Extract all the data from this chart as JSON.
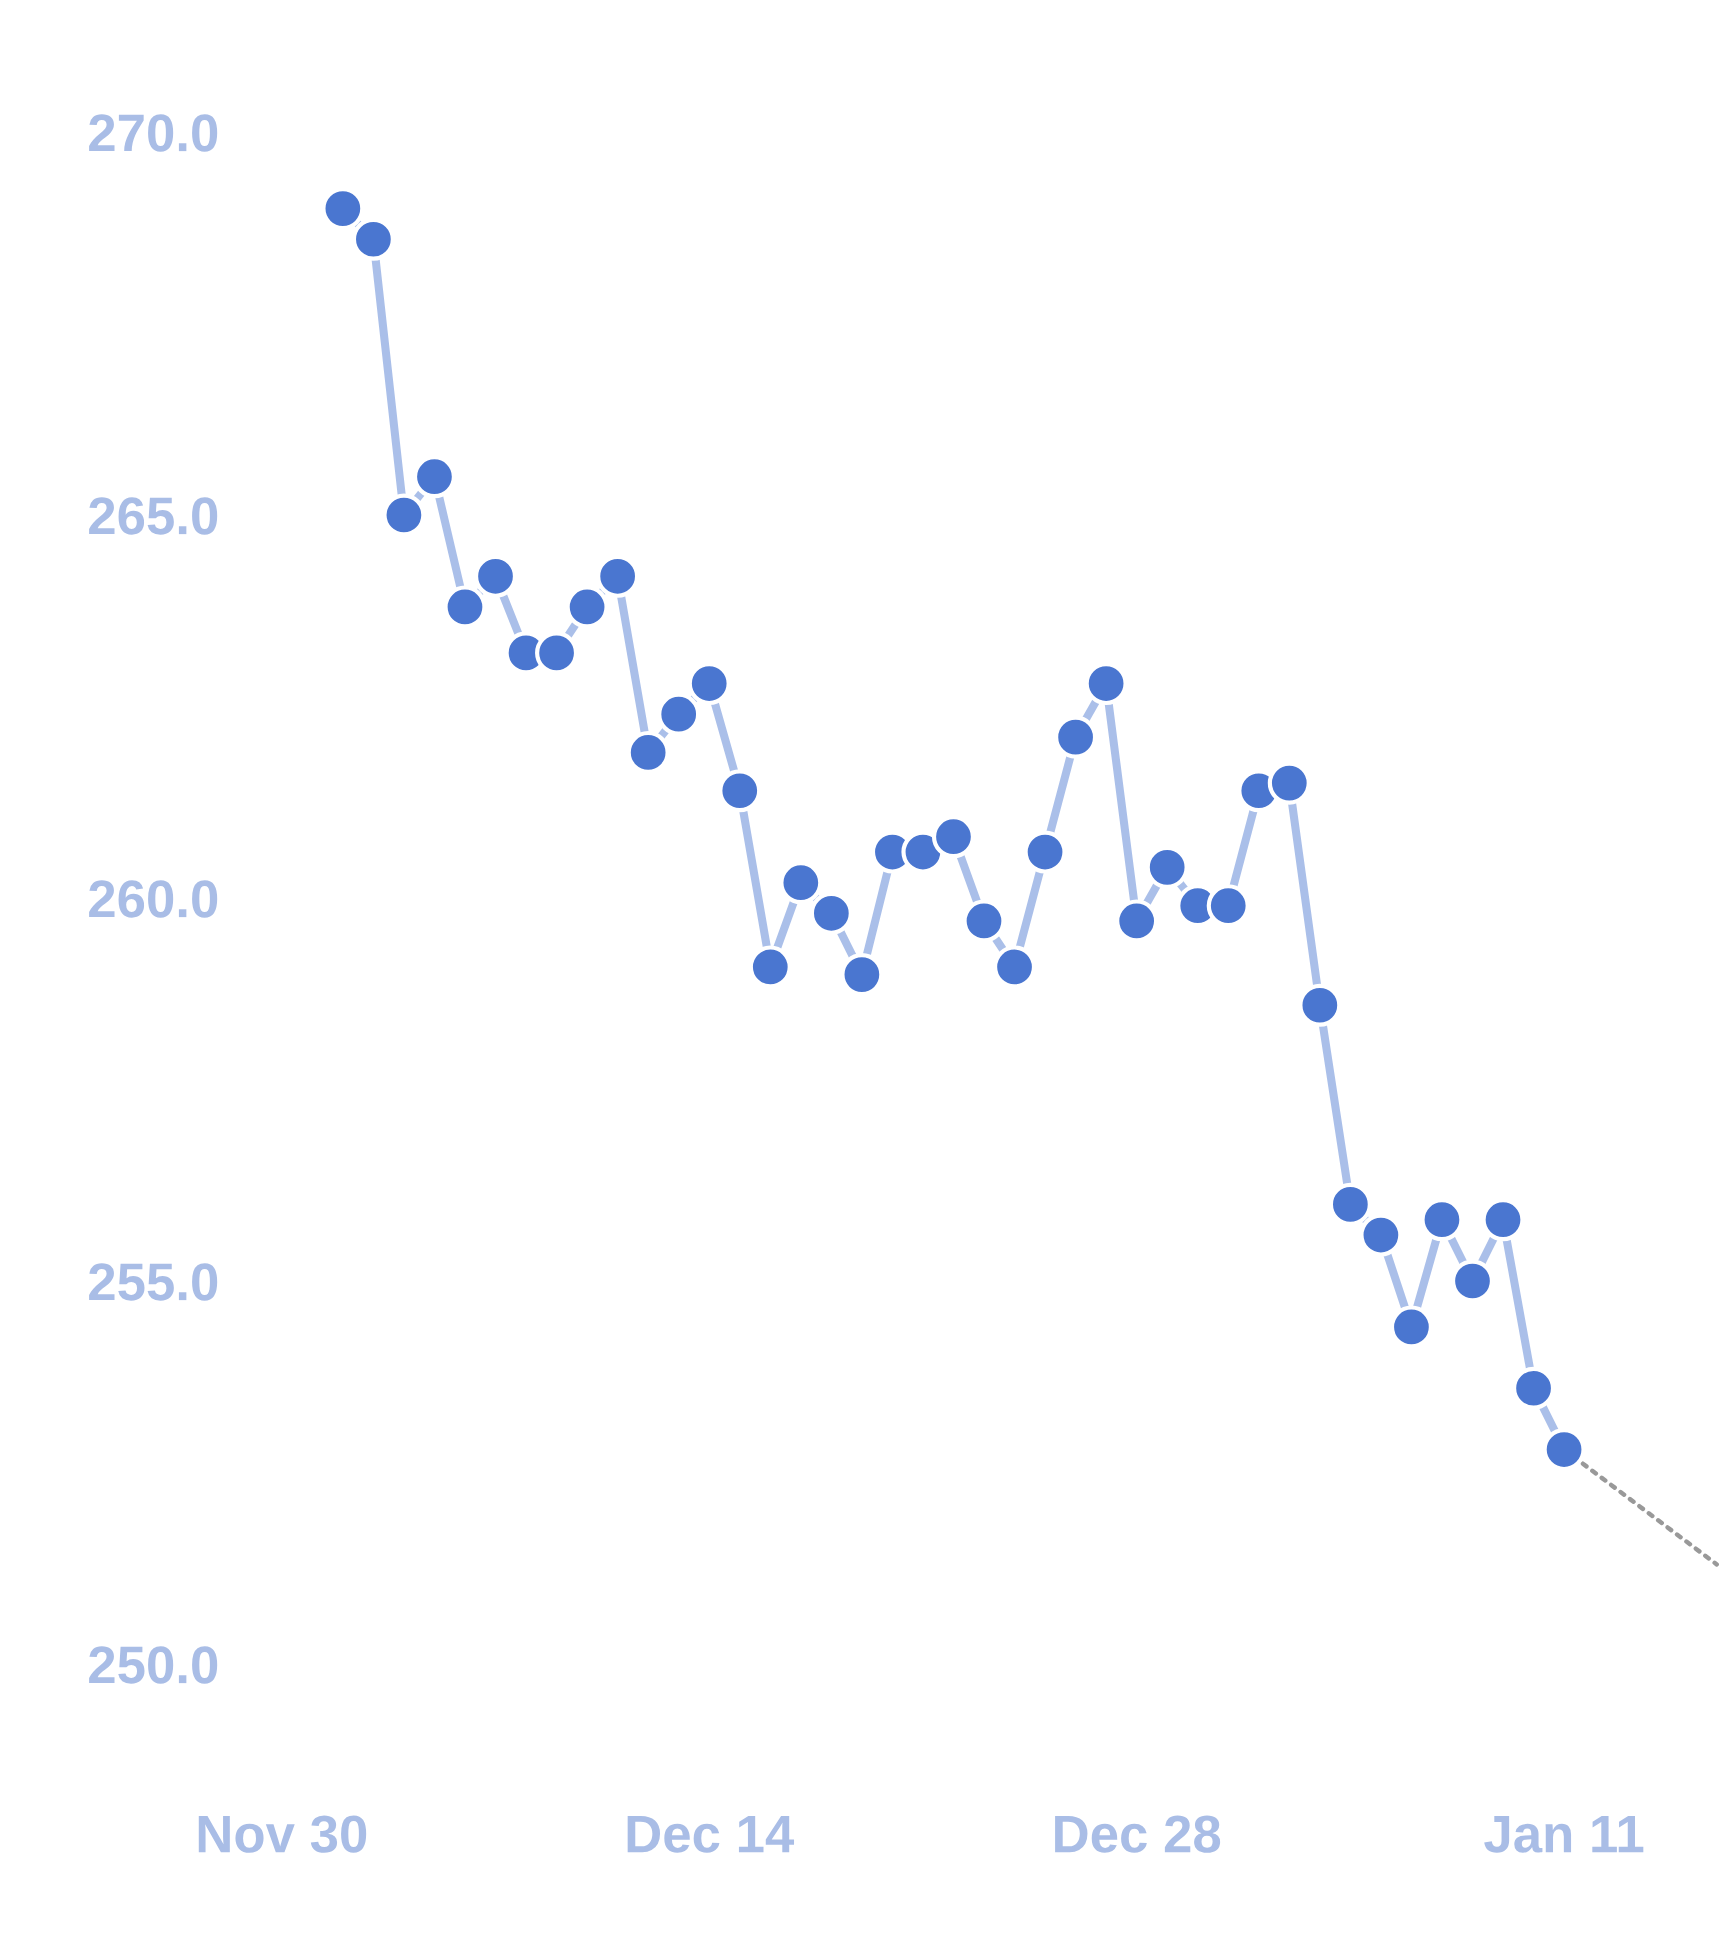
{
  "chart_data": {
    "type": "line",
    "categories": [
      null,
      "Nov 30",
      null,
      null,
      null,
      null,
      null,
      null,
      null,
      null,
      null,
      null,
      null,
      null,
      null,
      "Dec 14",
      null,
      null,
      null,
      null,
      null,
      null,
      null,
      null,
      null,
      null,
      null,
      null,
      null,
      "Dec 28",
      null,
      null,
      null,
      null,
      null,
      null,
      null,
      null,
      null,
      null,
      null,
      null,
      null,
      "Jan 11",
      null,
      null,
      null,
      null,
      null
    ],
    "ylim": [
      250,
      270
    ],
    "yticks": [
      {
        "value": 250,
        "label": "250.0"
      },
      {
        "value": 255,
        "label": "255.0"
      },
      {
        "value": 260,
        "label": "260.0"
      },
      {
        "value": 265,
        "label": "265.0"
      },
      {
        "value": 270,
        "label": "270.0"
      }
    ],
    "marker": "circle",
    "line_style": "solid",
    "series": [
      {
        "color": "#4a76d0",
        "values": [
          null,
          null,
          null,
          269.0,
          268.6,
          265.0,
          265.5,
          263.8,
          264.2,
          263.2,
          263.2,
          263.8,
          264.2,
          261.9,
          262.4,
          262.8,
          261.4,
          259.1,
          260.2,
          259.8,
          259.0,
          260.6,
          260.6,
          260.8,
          259.7,
          259.1,
          260.6,
          262.1,
          262.8,
          259.7,
          260.4,
          259.9,
          259.9,
          261.4,
          261.5,
          258.6,
          256.0,
          255.6,
          254.4,
          255.8,
          255.0,
          255.8,
          253.6,
          252.8,
          null,
          null,
          null,
          null,
          null
        ]
      },
      {
        "type": "line",
        "color": "#999999",
        "line_style": "dotted",
        "marker": "none",
        "values": [
          null,
          null,
          null,
          null,
          null,
          null,
          null,
          null,
          null,
          null,
          null,
          null,
          null,
          null,
          null,
          null,
          null,
          null,
          null,
          null,
          null,
          null,
          null,
          null,
          null,
          null,
          null,
          null,
          null,
          null,
          null,
          null,
          null,
          null,
          null,
          null,
          null,
          null,
          null,
          null,
          null,
          null,
          null,
          252.8,
          252.5,
          252.2,
          251.9,
          251.6,
          251.3
        ]
      }
    ]
  }
}
